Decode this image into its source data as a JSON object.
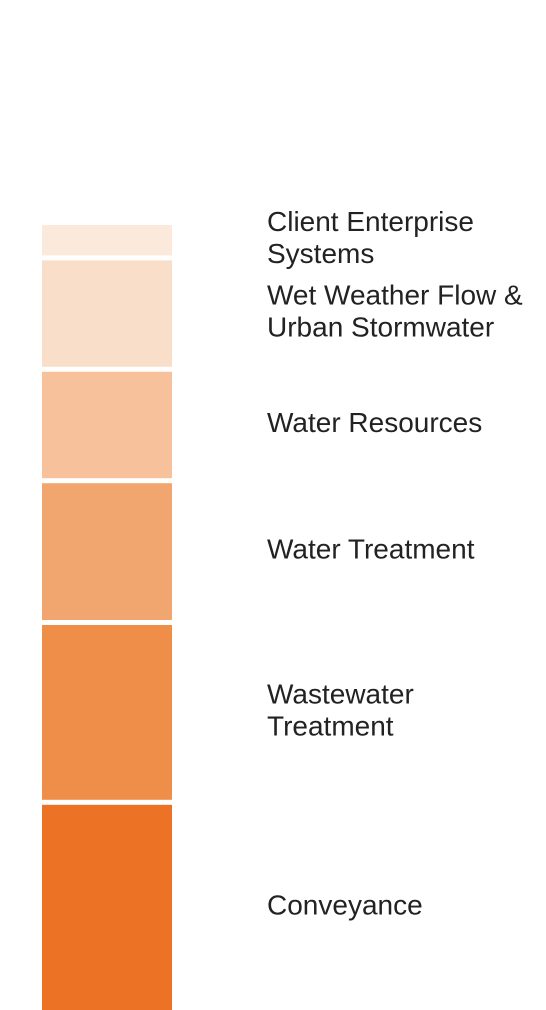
{
  "chart_data": {
    "type": "stacked_bar",
    "categories": [
      [
        "Client Enterprise",
        "Systems"
      ],
      [
        "Wet Weather Flow &",
        "Urban Stormwater"
      ],
      [
        "Water Resources"
      ],
      [
        "Water Treatment"
      ],
      [
        "Wastewater",
        "Treatment"
      ],
      [
        "Conveyance"
      ]
    ],
    "values": [
      4,
      14,
      14,
      18,
      23,
      27
    ],
    "colors": [
      "#fbe9dc",
      "#f9dfca",
      "#f7c19b",
      "#f2a66f",
      "#ef8e49",
      "#ec7226"
    ]
  }
}
